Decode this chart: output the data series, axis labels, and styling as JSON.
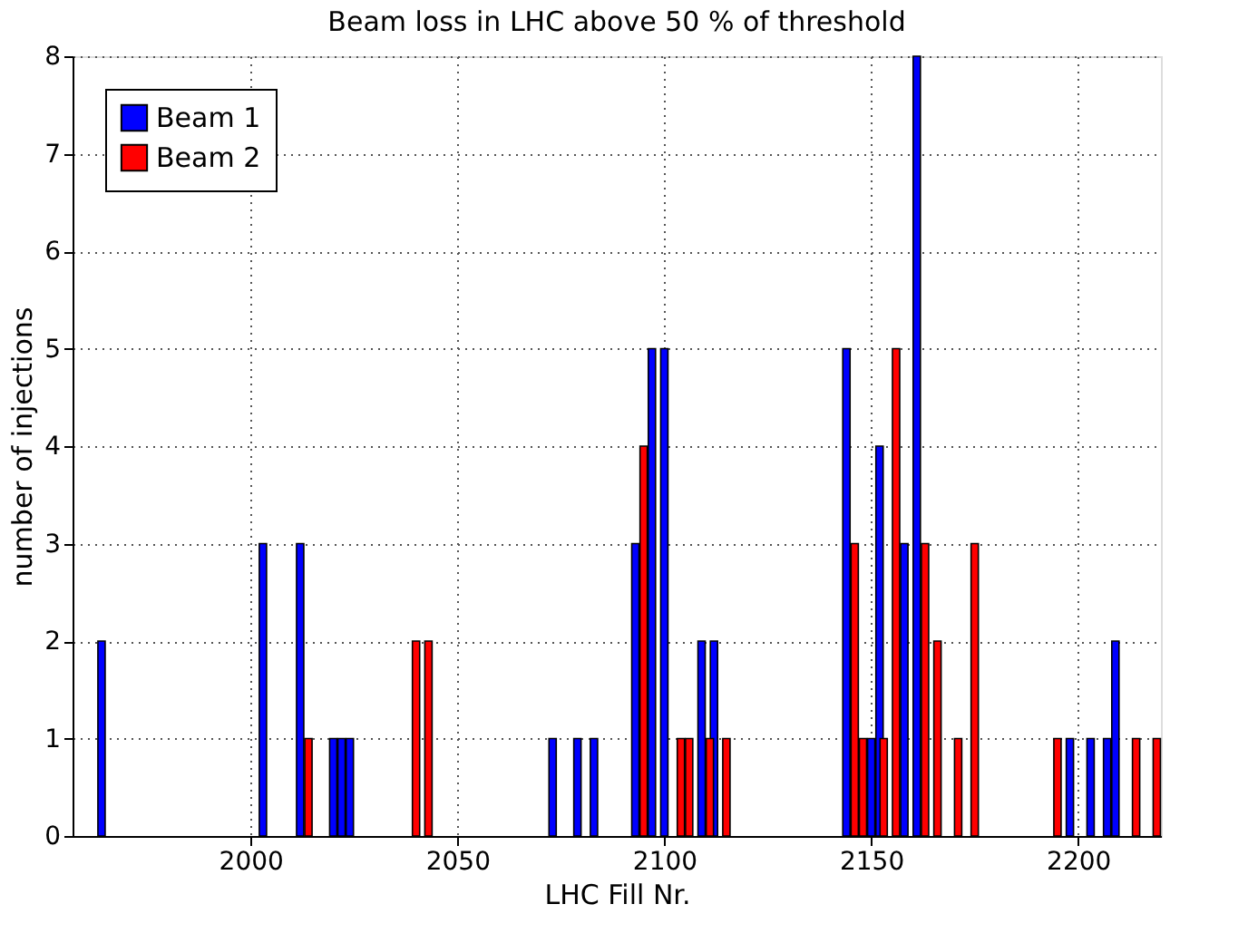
{
  "chart_data": {
    "type": "bar",
    "title": "Beam loss in LHC above 50 % of threshold",
    "xlabel": "LHC Fill Nr.",
    "ylabel": "number of injections",
    "series": [
      {
        "name": "Beam 1",
        "color": "#0000ff",
        "x": [
          1964,
          2003,
          2012,
          2020,
          2022,
          2024,
          2073,
          2079,
          2083,
          2093,
          2097,
          2100,
          2109,
          2112,
          2144,
          2150,
          2152,
          2158,
          2161,
          2198,
          2203,
          2207,
          2209
        ],
        "values": [
          2,
          3,
          3,
          1,
          1,
          1,
          1,
          1,
          1,
          3,
          5,
          5,
          2,
          2,
          5,
          1,
          4,
          3,
          8,
          1,
          1,
          1,
          2
        ]
      },
      {
        "name": "Beam 2",
        "color": "#ff0000",
        "x": [
          2014,
          2040,
          2043,
          2095,
          2104,
          2106,
          2111,
          2115,
          2146,
          2148,
          2153,
          2156,
          2163,
          2166,
          2171,
          2175,
          2195,
          2214,
          2219
        ],
        "values": [
          1,
          2,
          2,
          4,
          1,
          1,
          1,
          1,
          3,
          1,
          1,
          5,
          3,
          2,
          1,
          3,
          1,
          1,
          1
        ]
      }
    ],
    "xlim": [
      1957,
      2220
    ],
    "xticks": [
      2000,
      2050,
      2100,
      2150,
      2200
    ],
    "ylim": [
      0,
      8
    ],
    "yticks": [
      0,
      1,
      2,
      3,
      4,
      5,
      6,
      7,
      8
    ],
    "grid": true,
    "legend": "top left"
  }
}
